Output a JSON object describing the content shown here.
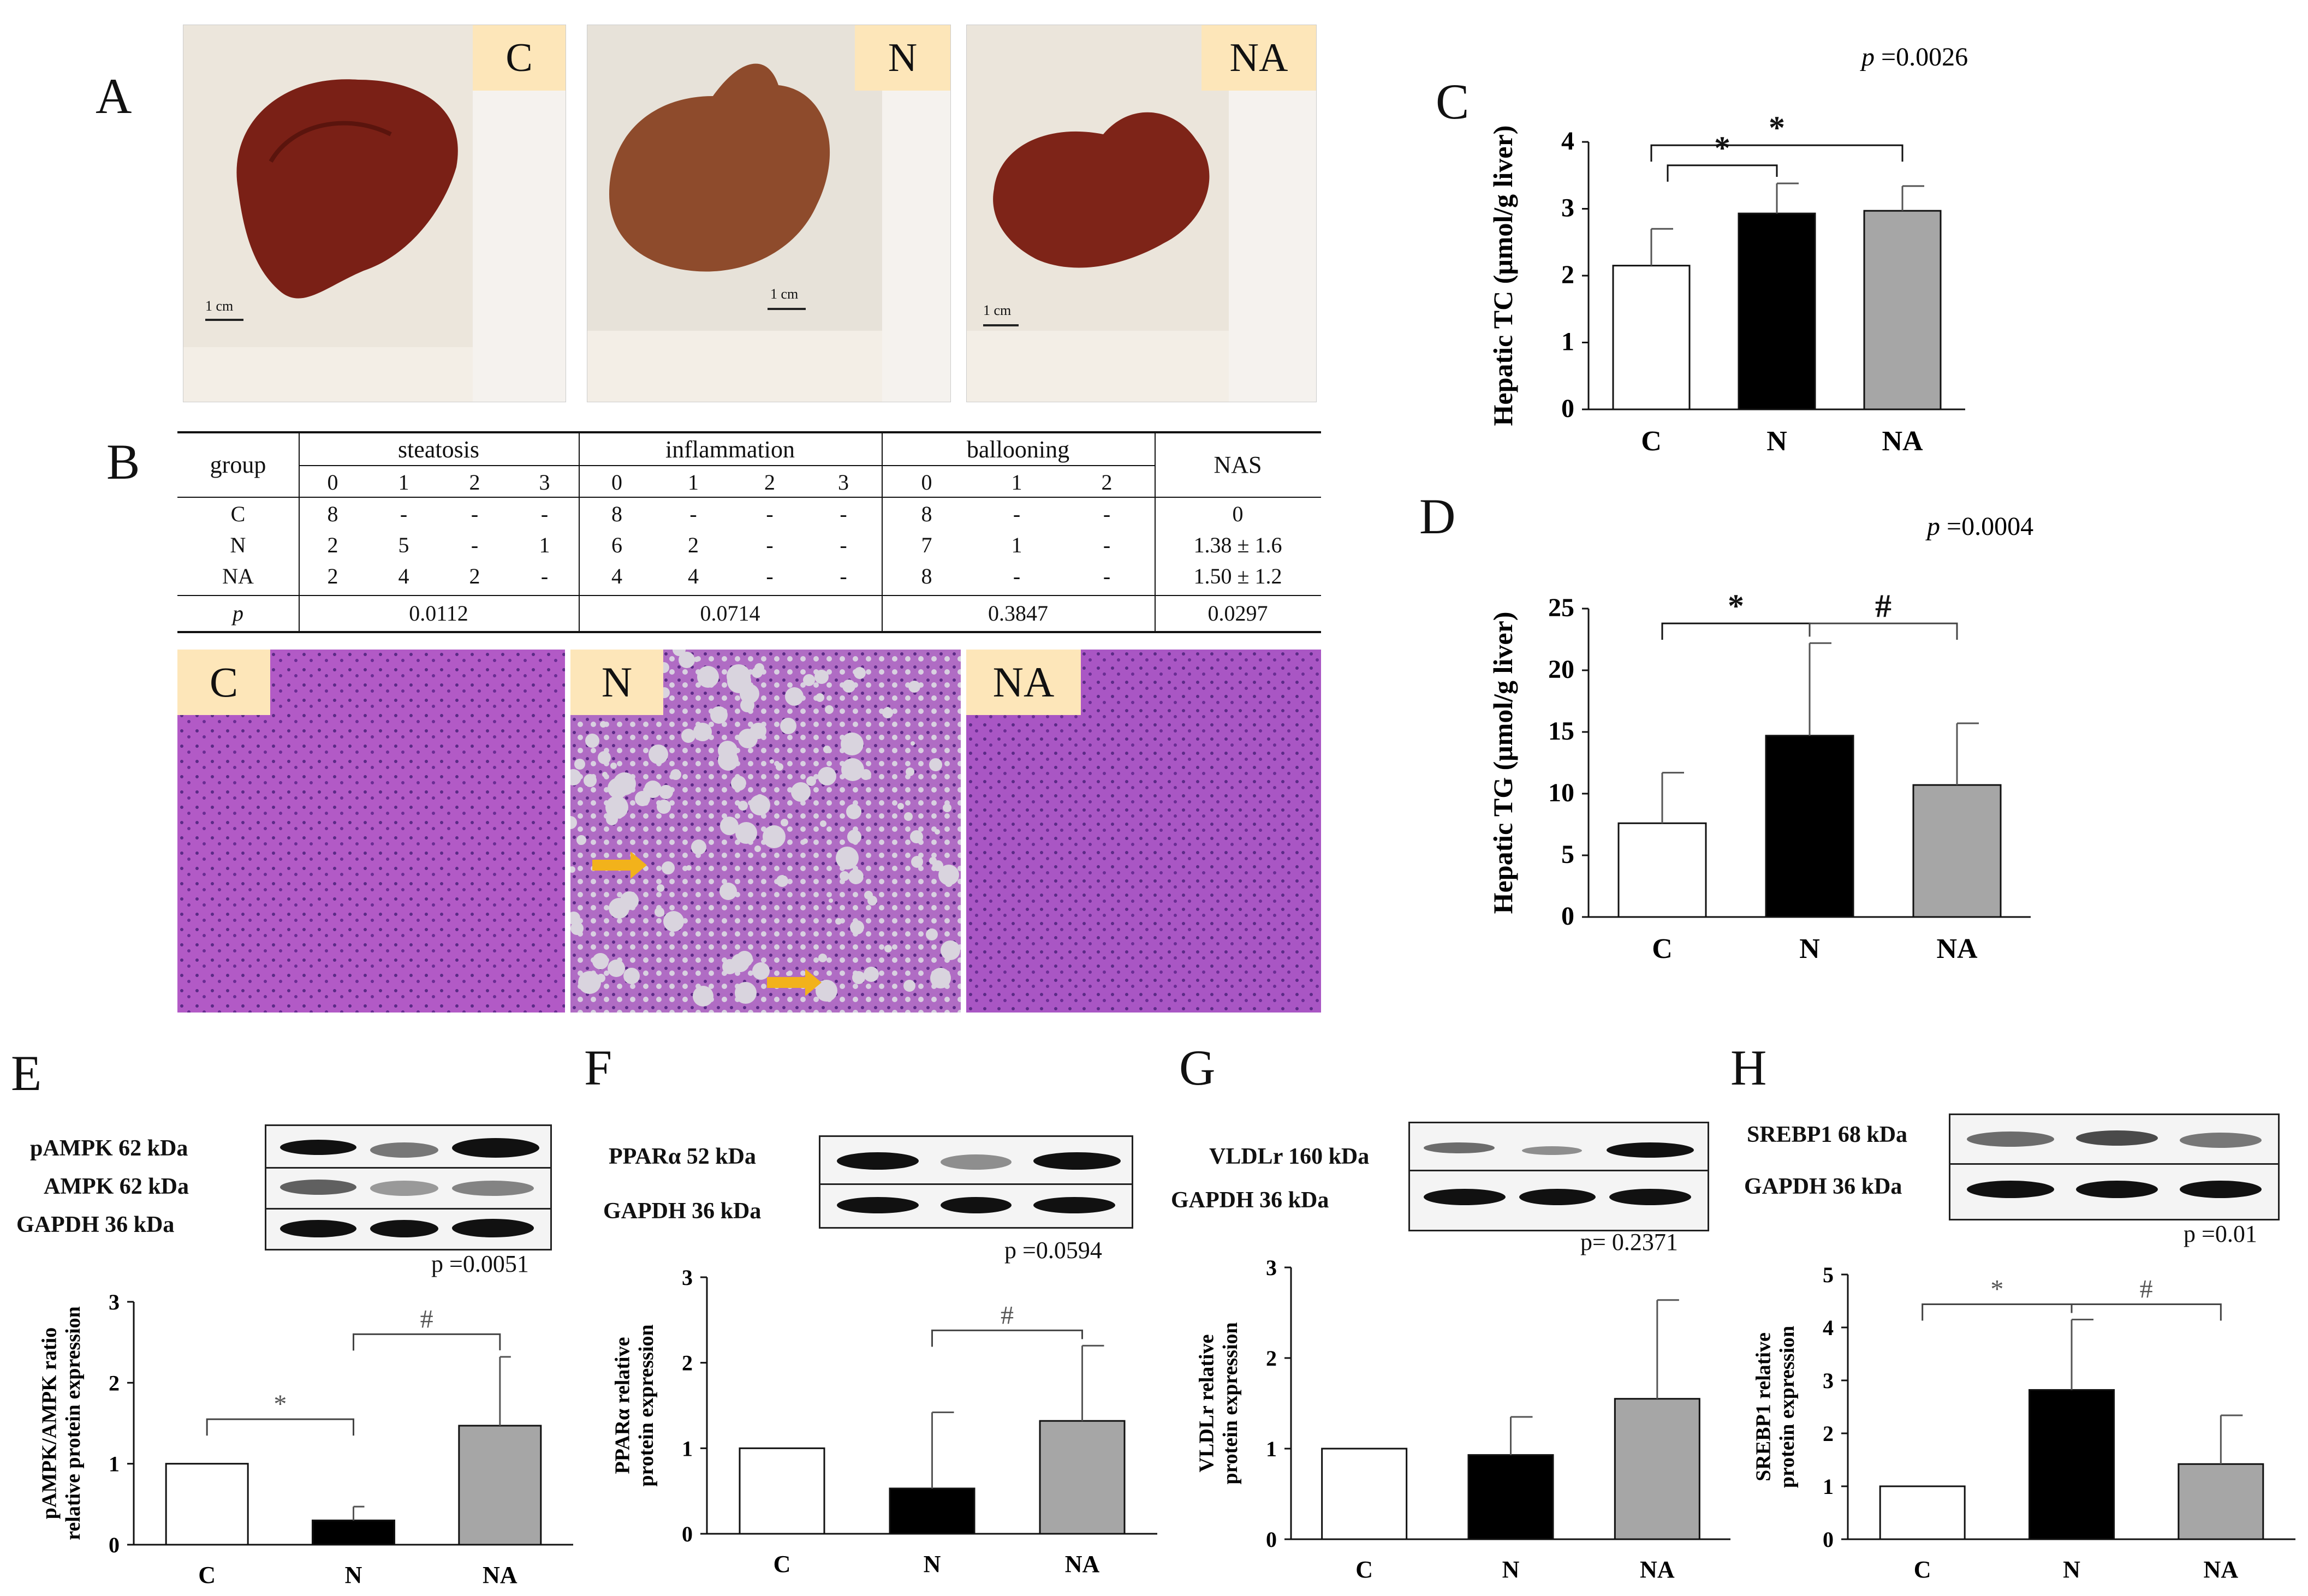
{
  "panels": {
    "A": "A",
    "B": "B",
    "C": "C",
    "D": "D",
    "E": "E",
    "F": "F",
    "G": "G",
    "H": "H"
  },
  "groups": [
    "C",
    "N",
    "NA"
  ],
  "photos": {
    "scale_label": "1 cm",
    "tags": [
      "C",
      "N",
      "NA"
    ]
  },
  "histology": {
    "tags": [
      "C",
      "N",
      "NA"
    ],
    "arrow_color": "#f2b21b",
    "stain_color": "#8b3fa8"
  },
  "table": {
    "col_group": "group",
    "col_steatosis": "steatosis",
    "col_inflammation": "inflammation",
    "col_ballooning": "ballooning",
    "col_nas": "NAS",
    "sub_steatosis": [
      "0",
      "1",
      "2",
      "3"
    ],
    "sub_inflammation": [
      "0",
      "1",
      "2",
      "3"
    ],
    "sub_ballooning": [
      "0",
      "1",
      "2"
    ],
    "rows": [
      {
        "group": "C",
        "steatosis": [
          "8",
          "-",
          "-",
          "-"
        ],
        "inflammation": [
          "8",
          "-",
          "-",
          "-"
        ],
        "ballooning": [
          "8",
          "-",
          "-"
        ],
        "nas": "0"
      },
      {
        "group": "N",
        "steatosis": [
          "2",
          "5",
          "-",
          "1"
        ],
        "inflammation": [
          "6",
          "2",
          "-",
          "-"
        ],
        "ballooning": [
          "7",
          "1",
          "-"
        ],
        "nas": "1.38 ± 1.6"
      },
      {
        "group": "NA",
        "steatosis": [
          "2",
          "4",
          "2",
          "-"
        ],
        "inflammation": [
          "4",
          "4",
          "-",
          "-"
        ],
        "ballooning": [
          "8",
          "-",
          "-"
        ],
        "nas": "1.50 ± 1.2"
      }
    ],
    "p_row": {
      "label": "p",
      "steatosis": "0.0112",
      "inflammation": "0.0714",
      "ballooning": "0.3847",
      "nas": "0.0297"
    }
  },
  "blots": {
    "E": {
      "labels": [
        "pAMPK 62 kDa",
        "AMPK 62 kDa",
        "GAPDH 36 kDa"
      ],
      "p": "p =0.0051"
    },
    "F": {
      "labels": [
        "PPARα 52 kDa",
        "GAPDH 36 kDa"
      ],
      "p": "p =0.0594"
    },
    "G": {
      "labels": [
        "VLDLr 160 kDa",
        "GAPDH 36 kDa"
      ],
      "p": "p= 0.2371"
    },
    "H": {
      "labels": [
        "SREBP1 68 kDa",
        "GAPDH 36 kDa"
      ],
      "p": "p =0.01"
    }
  },
  "chart_data": [
    {
      "id": "C",
      "type": "bar",
      "categories": [
        "C",
        "N",
        "NA"
      ],
      "values": [
        2.15,
        2.93,
        2.97
      ],
      "errors": [
        0.55,
        0.45,
        0.37
      ],
      "colors": [
        "#ffffff",
        "#000000",
        "#a6a6a6"
      ],
      "ylabel": "Hepatic TC (μmol/g liver)",
      "ylim": [
        0,
        4
      ],
      "yticks": [
        0,
        1,
        2,
        3,
        4
      ],
      "p_text": "p =0.0026",
      "sig": [
        {
          "from": 0,
          "to": 1,
          "mark": "*"
        },
        {
          "from": 0,
          "to": 2,
          "mark": "*"
        }
      ]
    },
    {
      "id": "D",
      "type": "bar",
      "categories": [
        "C",
        "N",
        "NA"
      ],
      "values": [
        7.6,
        14.7,
        10.7
      ],
      "errors": [
        4.1,
        7.5,
        5.0
      ],
      "colors": [
        "#ffffff",
        "#000000",
        "#a6a6a6"
      ],
      "ylabel": "Hepatic TG (μmol/g liver)",
      "ylim": [
        0,
        25
      ],
      "yticks": [
        0,
        5,
        10,
        15,
        20,
        25
      ],
      "p_text": "p =0.0004",
      "sig": [
        {
          "from": 0,
          "to": 1,
          "mark": "*"
        },
        {
          "from": 1,
          "to": 2,
          "mark": "#"
        }
      ]
    },
    {
      "id": "E",
      "type": "bar",
      "categories": [
        "C",
        "N",
        "NA"
      ],
      "values": [
        1.0,
        0.3,
        1.47
      ],
      "errors": [
        0,
        0.17,
        0.85
      ],
      "colors": [
        "#ffffff",
        "#000000",
        "#a6a6a6"
      ],
      "ylabel": "pAMPK/AMPK ratio relative protein expression",
      "ylim": [
        0,
        3
      ],
      "yticks": [
        0,
        1,
        2,
        3
      ],
      "sig": [
        {
          "from": 0,
          "to": 1,
          "mark": "*"
        },
        {
          "from": 1,
          "to": 2,
          "mark": "#"
        }
      ]
    },
    {
      "id": "F",
      "type": "bar",
      "categories": [
        "C",
        "N",
        "NA"
      ],
      "values": [
        1.0,
        0.53,
        1.32
      ],
      "errors": [
        0,
        0.89,
        0.88
      ],
      "colors": [
        "#ffffff",
        "#000000",
        "#a6a6a6"
      ],
      "ylabel": "PPARα relative protein expression",
      "ylim": [
        0,
        3
      ],
      "yticks": [
        0,
        1,
        2,
        3
      ],
      "sig": [
        {
          "from": 1,
          "to": 2,
          "mark": "#"
        }
      ]
    },
    {
      "id": "G",
      "type": "bar",
      "categories": [
        "C",
        "N",
        "NA"
      ],
      "values": [
        1.0,
        0.93,
        1.55
      ],
      "errors": [
        0,
        0.42,
        1.09
      ],
      "colors": [
        "#ffffff",
        "#000000",
        "#a6a6a6"
      ],
      "ylabel": "VLDLr relative protein expression",
      "ylim": [
        0,
        3
      ],
      "yticks": [
        0,
        1,
        2,
        3
      ],
      "sig": []
    },
    {
      "id": "H",
      "type": "bar",
      "categories": [
        "C",
        "N",
        "NA"
      ],
      "values": [
        1.0,
        2.82,
        1.42
      ],
      "errors": [
        0,
        1.33,
        0.92
      ],
      "colors": [
        "#ffffff",
        "#000000",
        "#a6a6a6"
      ],
      "ylabel": "SREBP1 relative protein expression",
      "ylim": [
        0,
        5
      ],
      "yticks": [
        0,
        1,
        2,
        3,
        4,
        5
      ],
      "sig": [
        {
          "from": 0,
          "to": 1,
          "mark": "*"
        },
        {
          "from": 1,
          "to": 2,
          "mark": "#"
        }
      ]
    }
  ]
}
